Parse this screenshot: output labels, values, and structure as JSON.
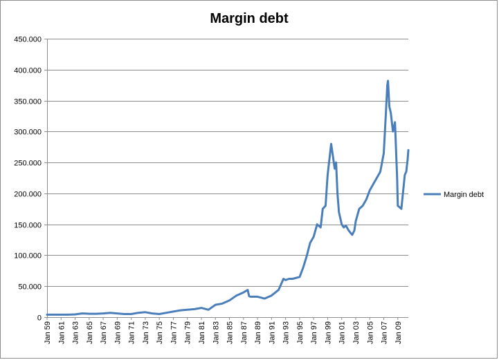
{
  "chart_data": {
    "type": "line",
    "title": "Margin debt",
    "xlabel": "",
    "ylabel": "",
    "ylim": [
      0,
      450000
    ],
    "grid": true,
    "legend": "right",
    "y_ticks": [
      "0",
      "50.000",
      "100.000",
      "150.000",
      "200.000",
      "250.000",
      "300.000",
      "350.000",
      "400.000",
      "450.000"
    ],
    "x_ticks": [
      "Jan 59",
      "Jan 61",
      "Jan 63",
      "Jan 65",
      "Jan 67",
      "Jan 69",
      "Jan 71",
      "Jan 73",
      "Jan 75",
      "Jan 77",
      "Jan 79",
      "Jan 81",
      "Jan 83",
      "Jan 85",
      "Jan 87",
      "Jan 89",
      "Jan 91",
      "Jan 93",
      "Jan 95",
      "Jan 97",
      "Jan 99",
      "Jan 01",
      "Jan 03",
      "Jan 05",
      "Jan 07",
      "Jan 09"
    ],
    "series": [
      {
        "name": "Margin debt",
        "color": "#4a7ebb",
        "x": [
          1959.0,
          1960.0,
          1961.0,
          1962.0,
          1963.0,
          1964.0,
          1965.0,
          1966.0,
          1967.0,
          1968.0,
          1969.0,
          1970.0,
          1971.0,
          1972.0,
          1973.0,
          1974.0,
          1975.0,
          1976.0,
          1977.0,
          1978.0,
          1979.0,
          1980.0,
          1981.0,
          1982.0,
          1983.0,
          1984.0,
          1985.0,
          1986.0,
          1987.0,
          1987.6,
          1987.8,
          1988.0,
          1989.0,
          1990.0,
          1991.0,
          1992.0,
          1992.7,
          1993.0,
          1993.5,
          1994.0,
          1995.0,
          1995.5,
          1996.0,
          1996.5,
          1997.0,
          1997.5,
          1998.0,
          1998.3,
          1998.7,
          1999.0,
          1999.5,
          2000.0,
          2000.2,
          2000.4,
          2000.6,
          2001.0,
          2001.3,
          2001.6,
          2002.0,
          2002.5,
          2002.8,
          2003.0,
          2003.5,
          2004.0,
          2004.5,
          2005.0,
          2005.5,
          2006.0,
          2006.5,
          2007.0,
          2007.3,
          2007.5,
          2007.6,
          2007.8,
          2008.0,
          2008.3,
          2008.6,
          2008.9,
          2009.0,
          2009.5,
          2010.0,
          2010.2,
          2010.4,
          2010.5
        ],
        "values": [
          4000,
          4000,
          4000,
          4000,
          4500,
          6000,
          5500,
          5500,
          6000,
          7000,
          6000,
          5000,
          5000,
          7000,
          8000,
          6000,
          5000,
          7000,
          9000,
          11000,
          12000,
          13000,
          15000,
          12000,
          20000,
          22000,
          27000,
          35000,
          40000,
          44000,
          34000,
          33000,
          33000,
          30000,
          35000,
          44000,
          62000,
          60000,
          62000,
          62000,
          65000,
          80000,
          98000,
          120000,
          130000,
          150000,
          145000,
          175000,
          180000,
          230000,
          280000,
          240000,
          250000,
          200000,
          170000,
          150000,
          145000,
          148000,
          140000,
          133000,
          140000,
          155000,
          175000,
          180000,
          190000,
          205000,
          215000,
          225000,
          235000,
          265000,
          330000,
          375000,
          382000,
          340000,
          330000,
          300000,
          315000,
          225000,
          180000,
          175000,
          230000,
          235000,
          255000,
          270000
        ]
      }
    ]
  }
}
